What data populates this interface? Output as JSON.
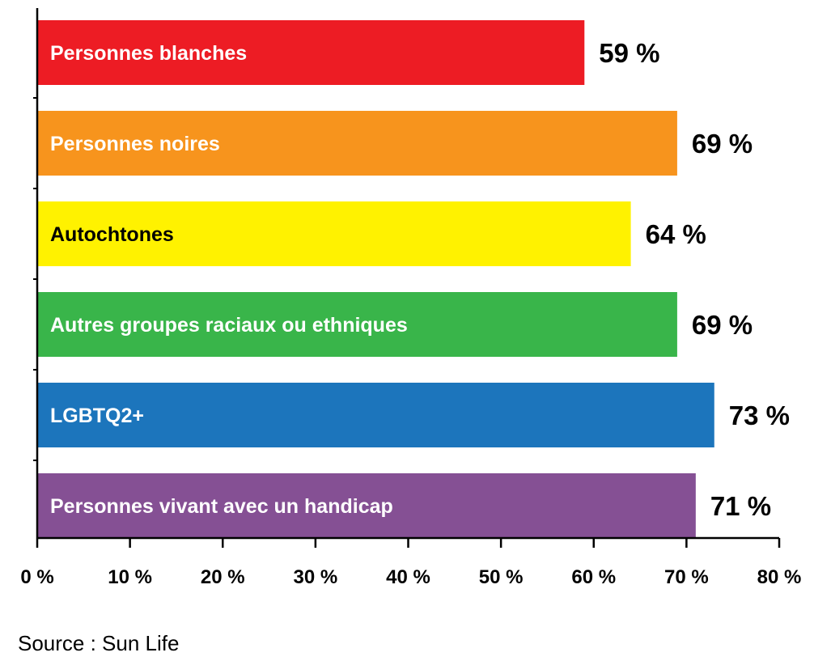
{
  "chart_data": {
    "type": "bar",
    "orientation": "horizontal",
    "categories": [
      "Personnes blanches",
      "Personnes noires",
      "Autochtones",
      "Autres groupes raciaux ou ethniques",
      "LGBTQ2+",
      "Personnes vivant avec un handicap"
    ],
    "values": [
      59,
      69,
      64,
      69,
      73,
      71
    ],
    "value_labels": [
      "59 %",
      "69 %",
      "64 %",
      "69 %",
      "73 %",
      "71 %"
    ],
    "colors": [
      "#ED1C24",
      "#F7941D",
      "#FFF200",
      "#39B54A",
      "#1C75BC",
      "#855094"
    ],
    "label_colors": [
      "#ffffff",
      "#ffffff",
      "#000000",
      "#ffffff",
      "#ffffff",
      "#ffffff"
    ],
    "xlim": [
      0,
      80
    ],
    "x_ticks": [
      0,
      10,
      20,
      30,
      40,
      50,
      60,
      70,
      80
    ],
    "x_tick_labels": [
      "0 %",
      "10 %",
      "20 %",
      "30 %",
      "40 %",
      "50 %",
      "60 %",
      "70 %",
      "80 %"
    ],
    "grid": false,
    "legend": "none"
  },
  "source": "Source : Sun Life"
}
